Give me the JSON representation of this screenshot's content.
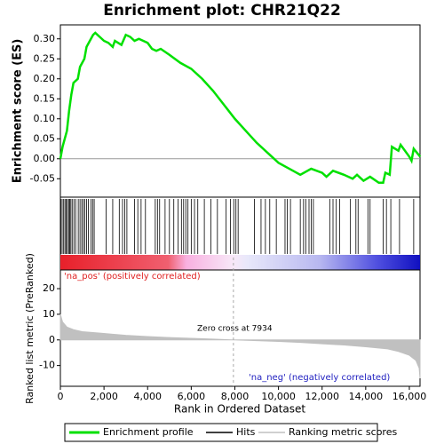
{
  "chart_data": {
    "title": "Enrichment plot: CHR21Q22",
    "xlim": [
      0,
      16490
    ],
    "xticks": [
      0,
      {
        "value": 2000,
        "label": "2,000"
      },
      {
        "value": 4000,
        "label": "4,000"
      },
      {
        "value": 6000,
        "label": "6,000"
      },
      {
        "value": 8000,
        "label": "8,000"
      },
      {
        "value": 10000,
        "label": "10,000"
      },
      {
        "value": 12000,
        "label": "12,000"
      },
      {
        "value": 14000,
        "label": "14,000"
      },
      {
        "value": 16000,
        "label": "16,000"
      }
    ],
    "xlabel": "Rank in Ordered Dataset",
    "es": {
      "type": "line",
      "ylabel": "Enrichment score (ES)",
      "color": "#00e000",
      "ylim": [
        -0.096,
        0.335
      ],
      "yticks": [
        {
          "value": -0.05,
          "label": "-0.05"
        },
        {
          "value": 0,
          "label": "0.00"
        },
        {
          "value": 0.05,
          "label": "0.05"
        },
        {
          "value": 0.1,
          "label": "0.10"
        },
        {
          "value": 0.15,
          "label": "0.15"
        },
        {
          "value": 0.2,
          "label": "0.20"
        },
        {
          "value": 0.25,
          "label": "0.25"
        },
        {
          "value": 0.3,
          "label": "0.30"
        }
      ],
      "x": [
        0,
        100,
        200,
        300,
        400,
        500,
        600,
        800,
        900,
        1000,
        1100,
        1200,
        1300,
        1500,
        1600,
        2000,
        2200,
        2400,
        2500,
        2800,
        3000,
        3200,
        3400,
        3600,
        4000,
        4200,
        4400,
        4600,
        5000,
        5500,
        6000,
        6500,
        7000,
        7500,
        8000,
        8500,
        9000,
        9500,
        10000,
        10500,
        11000,
        11500,
        12000,
        12200,
        12500,
        13000,
        13400,
        13600,
        13900,
        14200,
        14600,
        14800,
        14900,
        15100,
        15200,
        15500,
        15600,
        16000,
        16100,
        16200,
        16500
      ],
      "values": [
        0,
        0.03,
        0.05,
        0.07,
        0.12,
        0.16,
        0.19,
        0.2,
        0.23,
        0.24,
        0.25,
        0.28,
        0.29,
        0.31,
        0.315,
        0.295,
        0.29,
        0.28,
        0.295,
        0.285,
        0.31,
        0.305,
        0.295,
        0.3,
        0.29,
        0.275,
        0.27,
        0.275,
        0.26,
        0.24,
        0.225,
        0.2,
        0.17,
        0.135,
        0.1,
        0.07,
        0.04,
        0.015,
        -0.01,
        -0.025,
        -0.04,
        -0.025,
        -0.035,
        -0.045,
        -0.03,
        -0.04,
        -0.05,
        -0.04,
        -0.055,
        -0.045,
        -0.06,
        -0.06,
        -0.035,
        -0.04,
        0.03,
        0.02,
        0.035,
        0.005,
        -0.005,
        0.025,
        0.005
      ]
    },
    "hits": [
      20,
      80,
      150,
      210,
      270,
      320,
      380,
      430,
      480,
      540,
      620,
      700,
      820,
      900,
      980,
      1050,
      1120,
      1200,
      1280,
      1400,
      1480,
      1550,
      2100,
      2400,
      2700,
      2850,
      2950,
      3050,
      3400,
      3550,
      3700,
      3900,
      4350,
      4450,
      4550,
      4800,
      5000,
      5200,
      5400,
      5550,
      5650,
      5750,
      5850,
      6000,
      6150,
      6300,
      6600,
      6900,
      7200,
      7600,
      7800,
      7950,
      8050,
      8150,
      8900,
      9200,
      9400,
      9600,
      9900,
      10300,
      10400,
      10550,
      11000,
      11150,
      11250,
      11400,
      11500,
      11600,
      12350,
      12500,
      12650,
      12800,
      13300,
      13550,
      13650,
      14100,
      14200,
      14800,
      14950,
      15150,
      15550,
      16200
    ],
    "metric": {
      "type": "area",
      "ylabel": "Ranked list metric (PreRanked)",
      "color": "#c0c0c0",
      "ylim": [
        -18.1,
        27.3
      ],
      "yticks": [
        -10,
        0,
        10,
        20
      ],
      "x": [
        0,
        100,
        300,
        600,
        1000,
        2000,
        3000,
        4000,
        5000,
        6000,
        7000,
        7934,
        9000,
        10000,
        11000,
        12000,
        13000,
        14000,
        15000,
        15500,
        16000,
        16300,
        16450,
        16490
      ],
      "values": [
        10,
        7,
        5,
        4,
        3.2,
        2.5,
        1.8,
        1.3,
        0.9,
        0.6,
        0.3,
        0,
        -0.3,
        -0.6,
        -1,
        -1.5,
        -2,
        -2.7,
        -3.5,
        -4.5,
        -6,
        -8,
        -11,
        -15
      ]
    },
    "pos_label": "'na_pos' (positively correlated)",
    "neg_label": "'na_neg' (negatively correlated)",
    "zero_cross": 7934,
    "zero_cross_label": "Zero cross at 7934",
    "legend": [
      "Enrichment profile",
      "Hits",
      "Ranking metric scores"
    ]
  }
}
